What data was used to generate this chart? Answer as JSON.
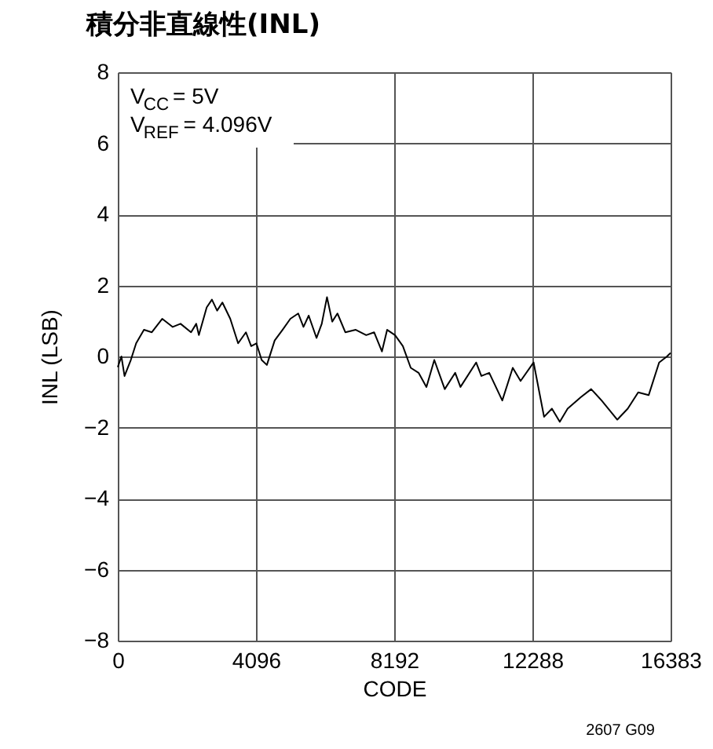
{
  "chart_data": {
    "type": "line",
    "title": "積分非直線性(INL)",
    "xlabel": "CODE",
    "ylabel": "INL (LSB)",
    "annotations": [
      "V$_{CC}$ = 5V",
      "V$_{REF}$ = 4.096V",
      "2607 G09"
    ],
    "x": [
      0,
      107,
      200,
      386,
      544,
      776,
      1009,
      1316,
      1628,
      1860,
      2171,
      2325,
      2403,
      2635,
      2790,
      2944,
      3100,
      3333,
      3566,
      3798,
      3953,
      4108,
      4263,
      4418,
      4650,
      4883,
      5115,
      5348,
      5503,
      5658,
      5890,
      6045,
      6200,
      6355,
      6510,
      6743,
      7053,
      7363,
      7596,
      7828,
      7983,
      8216,
      8449,
      8682,
      8914,
      9147,
      9380,
      9690,
      10000,
      10155,
      10620,
      10775,
      11008,
      11395,
      11705,
      11937,
      12323,
      12633,
      12866,
      13099,
      13331,
      13719,
      14029,
      14339,
      14804,
      15113,
      15423,
      15733,
      16043,
      16276,
      16383
    ],
    "series": [
      {
        "color": "#000000",
        "values": [
          -0.3,
          0.0,
          -0.55,
          -0.1,
          0.37,
          0.75,
          0.68,
          1.06,
          0.83,
          0.92,
          0.68,
          0.92,
          0.6,
          1.38,
          1.6,
          1.29,
          1.52,
          1.06,
          0.37,
          0.68,
          0.29,
          0.37,
          -0.1,
          -0.24,
          0.45,
          0.75,
          1.06,
          1.21,
          0.83,
          1.15,
          0.52,
          0.92,
          1.67,
          0.98,
          1.21,
          0.68,
          0.75,
          0.6,
          0.68,
          0.14,
          0.75,
          0.6,
          0.29,
          -0.32,
          -0.46,
          -0.86,
          -0.1,
          -0.92,
          -0.46,
          -0.86,
          -0.17,
          -0.55,
          -0.46,
          -1.24,
          -0.32,
          -0.69,
          -0.17,
          -1.7,
          -1.47,
          -1.84,
          -1.47,
          -1.15,
          -0.92,
          -1.24,
          -1.78,
          -1.47,
          -1.01,
          -1.09,
          -0.17,
          0.0,
          0.1
        ]
      }
    ],
    "xlim": [
      0,
      16383
    ],
    "xticks": [
      0,
      4096,
      8192,
      12288,
      16383
    ],
    "ylim": [
      -8,
      8
    ],
    "yticks": [
      {
        "value": -8,
        "label": "−8"
      },
      {
        "value": -6,
        "label": "−6"
      },
      {
        "value": -4,
        "label": "−4"
      },
      {
        "value": -2,
        "label": "−2"
      },
      0,
      2,
      4,
      6,
      8
    ],
    "grid": true,
    "marker": "none",
    "line_style": "solid"
  }
}
